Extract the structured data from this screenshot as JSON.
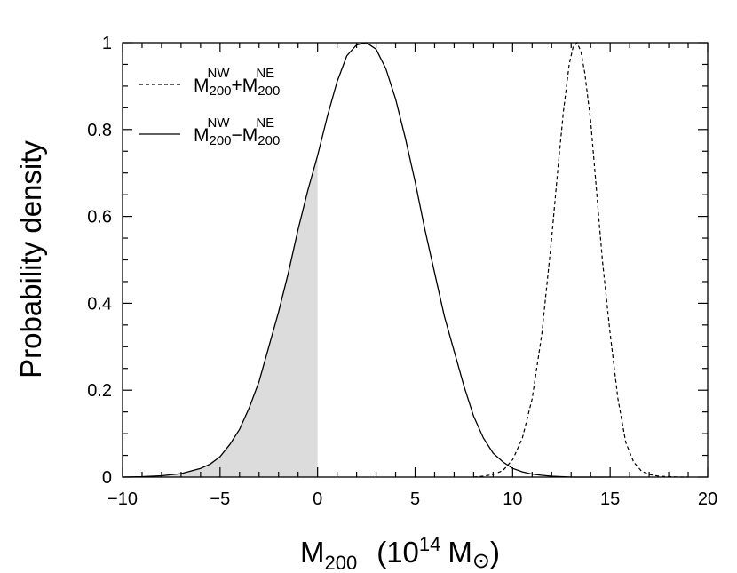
{
  "chart_data": {
    "type": "line",
    "title": "",
    "xlabel": {
      "main": "M",
      "sub": "200",
      "unit_open": "(10",
      "unit_exp": "14",
      "unit_m": "M",
      "unit_sun": "⊙",
      "unit_close": ")"
    },
    "ylabel": "Probability density",
    "xlim": [
      -10,
      20
    ],
    "ylim": [
      0,
      1
    ],
    "x_ticks": [
      -10,
      -5,
      0,
      5,
      10,
      15,
      20
    ],
    "x_tick_labels": [
      "−10",
      "−5",
      "0",
      "5",
      "10",
      "15",
      "20"
    ],
    "y_ticks": [
      0,
      0.2,
      0.4,
      0.6,
      0.8,
      1
    ],
    "y_tick_labels": [
      "0",
      "0.2",
      "0.4",
      "0.6",
      "0.8",
      "1"
    ],
    "grid": false,
    "legend_position": "top-left",
    "series": [
      {
        "name": "sum",
        "style": "dashed",
        "legend": {
          "m1": "M",
          "sub1": "200",
          "sup1": "NW",
          "op": "+",
          "m2": "M",
          "sub2": "200",
          "sup2": "NE"
        },
        "x": [
          8.0,
          8.5,
          9.0,
          9.5,
          10.0,
          10.5,
          11.0,
          11.5,
          12.0,
          12.3,
          12.6,
          12.9,
          13.1,
          13.3,
          13.5,
          13.7,
          14.0,
          14.3,
          14.6,
          15.0,
          15.4,
          15.8,
          16.2,
          16.6,
          17.0,
          17.5,
          18.0,
          18.5,
          19.0
        ],
        "y": [
          0.0,
          0.002,
          0.006,
          0.015,
          0.04,
          0.09,
          0.18,
          0.33,
          0.55,
          0.7,
          0.84,
          0.95,
          0.99,
          1.0,
          0.98,
          0.93,
          0.82,
          0.66,
          0.5,
          0.33,
          0.18,
          0.08,
          0.035,
          0.014,
          0.006,
          0.002,
          0.001,
          0.0,
          0.0
        ]
      },
      {
        "name": "difference",
        "style": "solid",
        "legend": {
          "m1": "M",
          "sub1": "200",
          "sup1": "NW",
          "op": "−",
          "m2": "M",
          "sub2": "200",
          "sup2": "NE"
        },
        "x": [
          -10.0,
          -9.0,
          -8.0,
          -7.0,
          -6.0,
          -5.5,
          -5.0,
          -4.5,
          -4.0,
          -3.5,
          -3.0,
          -2.5,
          -2.0,
          -1.5,
          -1.0,
          -0.5,
          0.0,
          0.5,
          1.0,
          1.5,
          2.0,
          2.5,
          3.0,
          3.5,
          4.0,
          4.5,
          5.0,
          5.5,
          6.0,
          6.5,
          7.0,
          7.5,
          8.0,
          8.5,
          9.0,
          9.5,
          10.0,
          10.5,
          11.0,
          11.5,
          12.0,
          12.5,
          13.0,
          14.0,
          15.0
        ],
        "y": [
          0.0,
          0.001,
          0.003,
          0.008,
          0.02,
          0.03,
          0.047,
          0.075,
          0.11,
          0.16,
          0.22,
          0.3,
          0.38,
          0.47,
          0.57,
          0.66,
          0.74,
          0.83,
          0.91,
          0.97,
          0.995,
          1.0,
          0.985,
          0.94,
          0.87,
          0.78,
          0.68,
          0.57,
          0.47,
          0.37,
          0.29,
          0.21,
          0.14,
          0.09,
          0.055,
          0.035,
          0.02,
          0.012,
          0.007,
          0.004,
          0.002,
          0.001,
          0.0,
          0.0,
          0.0
        ]
      }
    ],
    "shaded_region": {
      "series": "difference",
      "x_from": -10,
      "x_to": 0,
      "color": "#dcdcdc"
    }
  }
}
